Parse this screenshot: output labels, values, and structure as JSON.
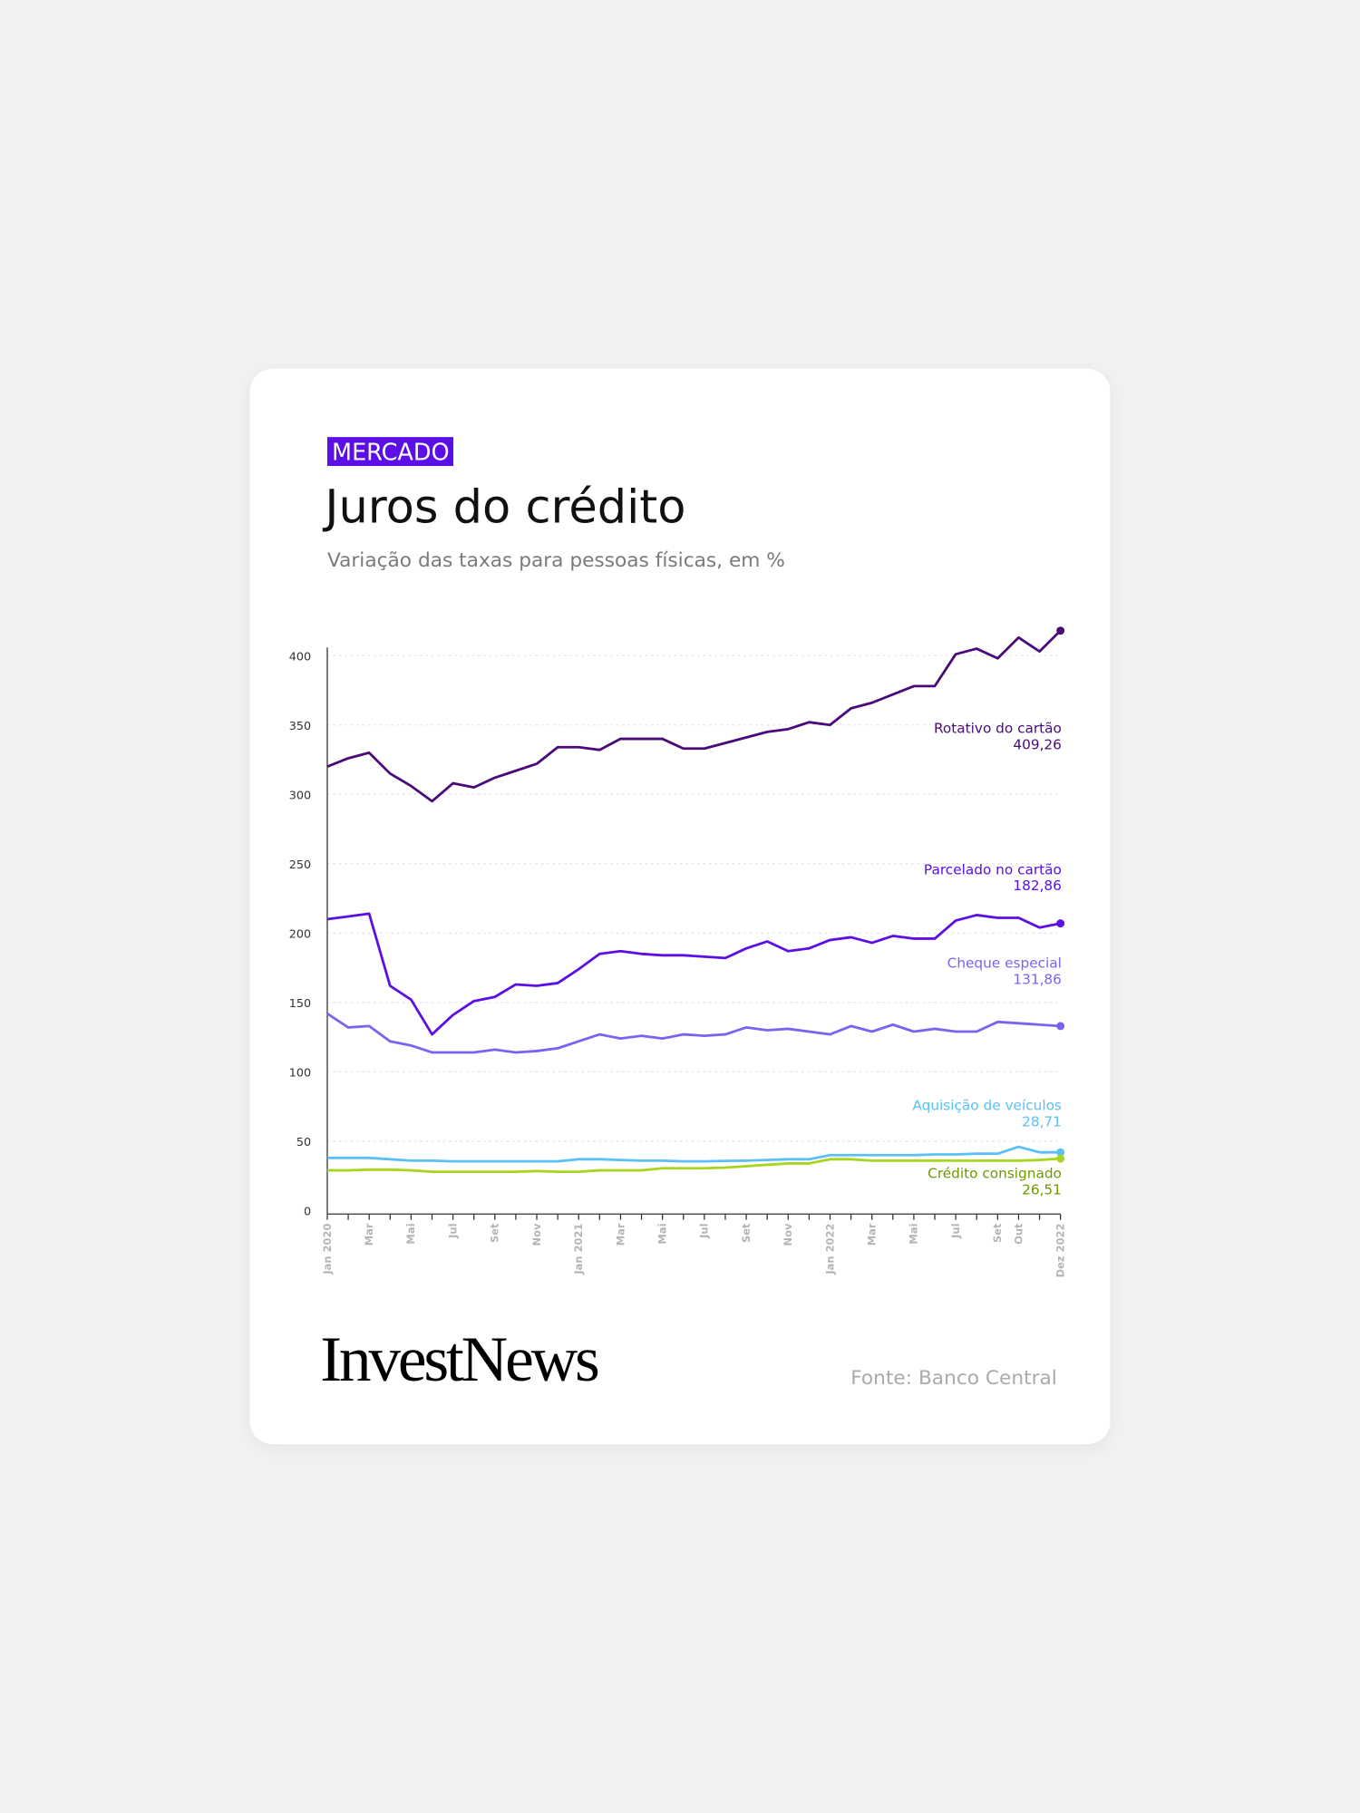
{
  "chart_data": {
    "type": "line",
    "tag": "MERCADO",
    "title": "Juros do crédito",
    "subtitle": "Variação das taxas para pessoas físicas, em %",
    "source": "Fonte: Banco Central",
    "brand": "InvestNews",
    "categories": [
      "Jan 2020",
      null,
      "Mar",
      null,
      "Mai",
      null,
      "Jul",
      null,
      "Set",
      null,
      "Nov",
      null,
      "Jan 2021",
      null,
      "Mar",
      null,
      "Mai",
      null,
      "Jul",
      null,
      "Set",
      null,
      "Nov",
      null,
      "Jan 2022",
      null,
      "Mar",
      null,
      "Mai",
      null,
      "Jul",
      null,
      "Set",
      "Out",
      null,
      "Dez 2022"
    ],
    "ylim": [
      0,
      400
    ],
    "yticks": [
      0,
      50,
      100,
      150,
      200,
      250,
      300,
      350,
      400
    ],
    "grid": true,
    "series": [
      {
        "name": "Rotativo do cartão",
        "note": "409,26",
        "color": "#4b0a7a",
        "values": [
          320,
          326,
          330,
          315,
          306,
          295,
          308,
          305,
          312,
          317,
          322,
          334,
          334,
          332,
          340,
          340,
          340,
          333,
          333,
          337,
          341,
          345,
          347,
          352,
          350,
          362,
          366,
          372,
          378,
          378,
          401,
          405,
          398,
          413,
          403,
          418
        ]
      },
      {
        "name": "Parcelado no cartão",
        "note": "182,86",
        "color": "#5b0fe6",
        "values": [
          210,
          212,
          214,
          162,
          152,
          127,
          141,
          151,
          154,
          163,
          162,
          164,
          174,
          185,
          187,
          185,
          184,
          184,
          183,
          182,
          189,
          194,
          187,
          189,
          195,
          197,
          193,
          198,
          196,
          196,
          209,
          213,
          211,
          211,
          204,
          207
        ]
      },
      {
        "name": "Cheque especial",
        "note": "131,86",
        "color": "#7b63f2",
        "values": [
          142,
          132,
          133,
          122,
          119,
          114,
          114,
          114,
          116,
          114,
          115,
          117,
          122,
          127,
          124,
          126,
          124,
          127,
          126,
          127,
          132,
          130,
          131,
          129,
          127,
          133,
          129,
          134,
          129,
          131,
          129,
          129,
          136,
          135,
          134,
          133
        ]
      },
      {
        "name": "Aquisição de veículos",
        "note": "28,71",
        "color": "#5bc0f5",
        "values": [
          38,
          38,
          38,
          37,
          36,
          36,
          35.5,
          35.5,
          35.5,
          35.5,
          35.5,
          35.5,
          37,
          37,
          36.5,
          36,
          36,
          35.5,
          35.5,
          35.8,
          36,
          36.5,
          37,
          37,
          40,
          40,
          40,
          40,
          40,
          40.5,
          40.5,
          41,
          41,
          46,
          42,
          42
        ]
      },
      {
        "name": "Crédito consignado",
        "note": "26,51",
        "color": "#a8d51f",
        "values": [
          29,
          29,
          29.5,
          29.5,
          29,
          28,
          28,
          28,
          28,
          28,
          28.5,
          28,
          28,
          29,
          29,
          29,
          30.5,
          30.5,
          30.5,
          31,
          32,
          33,
          34,
          34,
          37,
          37,
          36,
          36,
          36,
          36,
          36,
          36,
          36,
          36,
          36.5,
          37.5
        ]
      }
    ]
  }
}
